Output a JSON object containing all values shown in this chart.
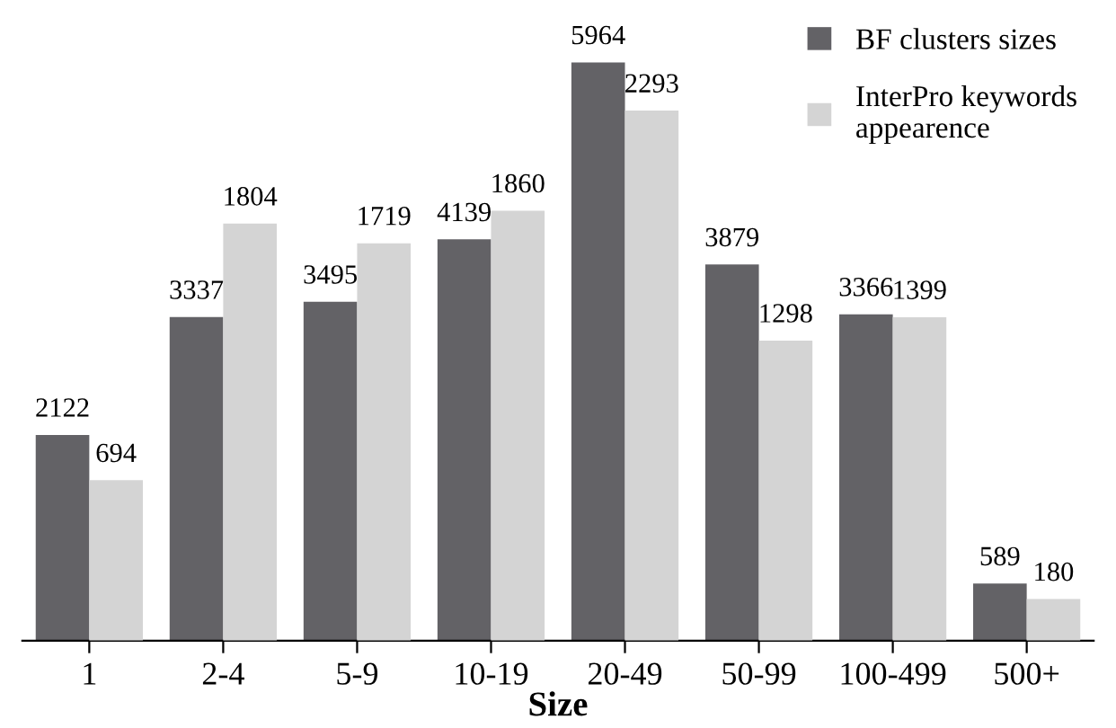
{
  "chart_data": {
    "type": "bar",
    "xlabel": "Size",
    "categories": [
      "1",
      "2-4",
      "5-9",
      "10-19",
      "20-49",
      "50-99",
      "100-499",
      "500+"
    ],
    "series": [
      {
        "name": "BF clusters sizes",
        "color": "#636266",
        "values": [
          2122,
          3337,
          3495,
          4139,
          5964,
          3879,
          3366,
          589
        ]
      },
      {
        "name": "InterPro keywords appearence",
        "color": "#d4d4d4",
        "axis": "y2",
        "values": [
          694,
          1804,
          1719,
          1860,
          2293,
          1298,
          1399,
          180
        ]
      }
    ],
    "tick_labels": "x",
    "data_labels": true,
    "legend": "top right",
    "grid": false
  }
}
